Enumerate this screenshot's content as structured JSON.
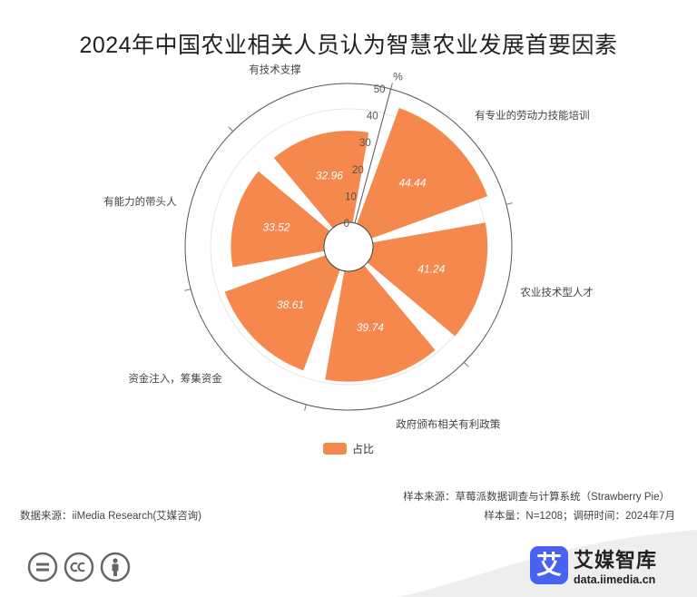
{
  "title": "2024年中国农业相关人员认为智慧农业发展首要因素",
  "chart_data": {
    "type": "polar-bar",
    "title": "2024年中国农业相关人员认为智慧农业发展首要因素",
    "unit": "%",
    "categories": [
      "有专业的劳动力技能培训",
      "农业技术型人才",
      "政府颁布相关有利政策",
      "资金注入，筹集资金",
      "有能力的带头人",
      "有技术支撑"
    ],
    "series": [
      {
        "name": "占比",
        "values": [
          44.44,
          41.24,
          39.74,
          38.61,
          33.52,
          32.96
        ]
      }
    ],
    "radial_ticks": [
      "0",
      "10",
      "20",
      "30",
      "40",
      "50"
    ],
    "rmax": 50,
    "color": "#f5884c"
  },
  "legend": {
    "label": "占比"
  },
  "notes": {
    "sample_source": "样本来源：草莓派数据调查与计算系统（Strawberry Pie）",
    "sample_size": "样本量：N=1208；调研时间：2024年7月",
    "data_source": "数据来源：iiMedia Research(艾媒咨询)"
  },
  "icons": [
    "equal-icon",
    "cc-icon",
    "person-icon"
  ],
  "brand": {
    "logo_char": "艾",
    "name": "艾媒智库",
    "url": "data.iimedia.cn"
  }
}
